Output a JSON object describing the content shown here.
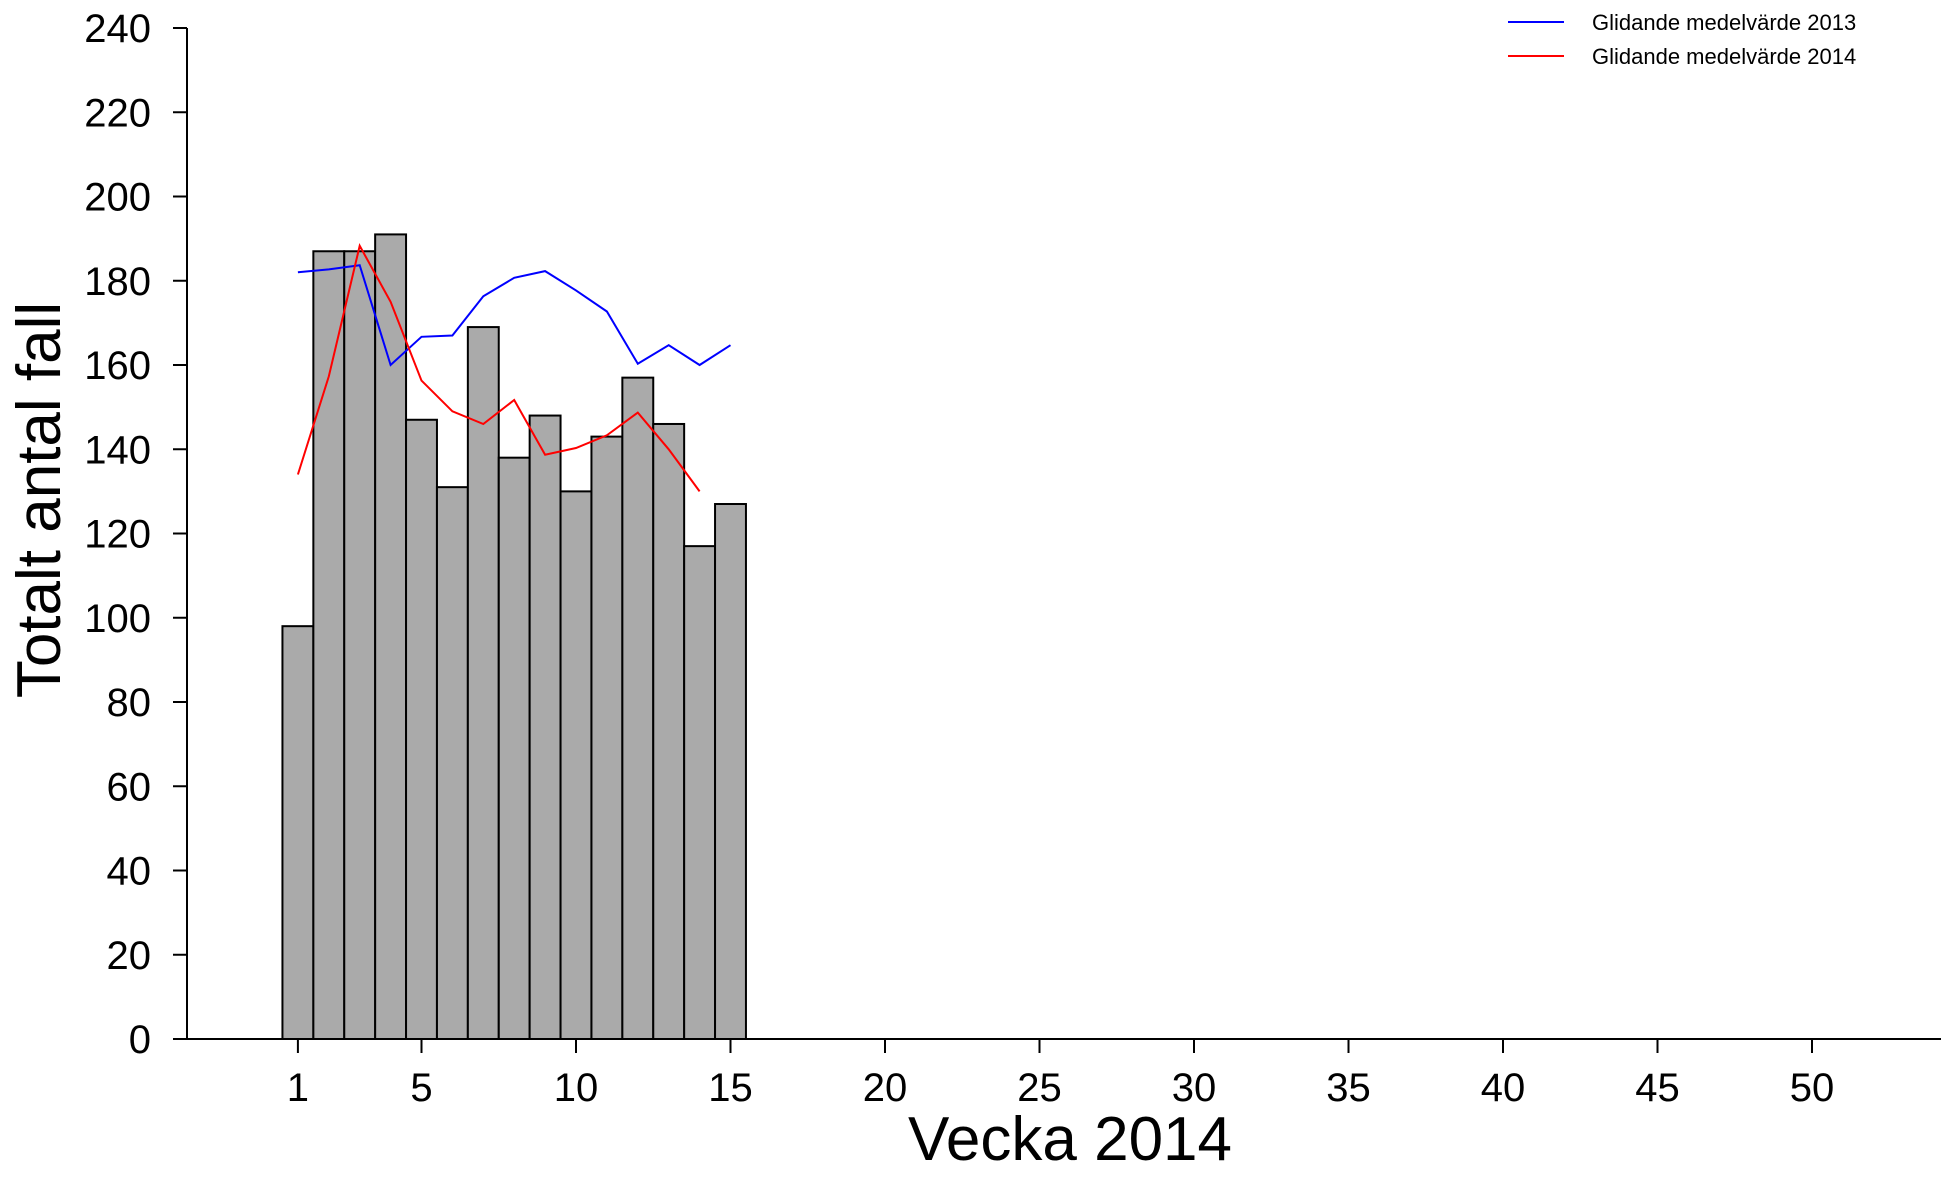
{
  "chart_data": {
    "type": "bar",
    "xlabel": "Vecka 2014",
    "ylabel": "Totalt antal fall",
    "xlim": [
      -1.5,
      55
    ],
    "ylim": [
      0,
      240
    ],
    "x_ticks": [
      1,
      5,
      10,
      15,
      20,
      25,
      30,
      35,
      40,
      45,
      50
    ],
    "x_axis_ticks_extra": [
      55
    ],
    "y_ticks": [
      0,
      20,
      40,
      60,
      80,
      100,
      120,
      140,
      160,
      180,
      200,
      220,
      240
    ],
    "bars": {
      "weeks": [
        1,
        2,
        3,
        4,
        5,
        6,
        7,
        8,
        9,
        10,
        11,
        12,
        13,
        14,
        15
      ],
      "values": [
        98,
        187,
        187,
        191,
        147,
        131,
        169,
        138,
        148,
        130,
        143,
        157,
        146,
        117,
        127
      ],
      "color": "#aaaaaa"
    },
    "series": [
      {
        "name": "Glidande medelvärde 2013",
        "color": "#0000ff",
        "x": [
          1,
          2,
          3,
          4,
          5,
          6,
          7,
          8,
          9,
          10,
          11,
          12,
          13,
          14,
          15
        ],
        "values": [
          182,
          182.7,
          183.7,
          160,
          166.7,
          167,
          176.3,
          180.7,
          182.3,
          177.7,
          172.7,
          160.3,
          164.7,
          160,
          164.7
        ]
      },
      {
        "name": "Glidande medelvärde 2014",
        "color": "#ff0000",
        "x": [
          1,
          2,
          3,
          4,
          5,
          6,
          7,
          8,
          9,
          10,
          11,
          12,
          13,
          14
        ],
        "values": [
          134,
          157.3,
          188.3,
          175,
          156.3,
          149,
          146,
          151.7,
          138.7,
          140.3,
          143.3,
          148.7,
          140,
          130
        ]
      }
    ],
    "legend_position": "top-right",
    "grid": false
  }
}
